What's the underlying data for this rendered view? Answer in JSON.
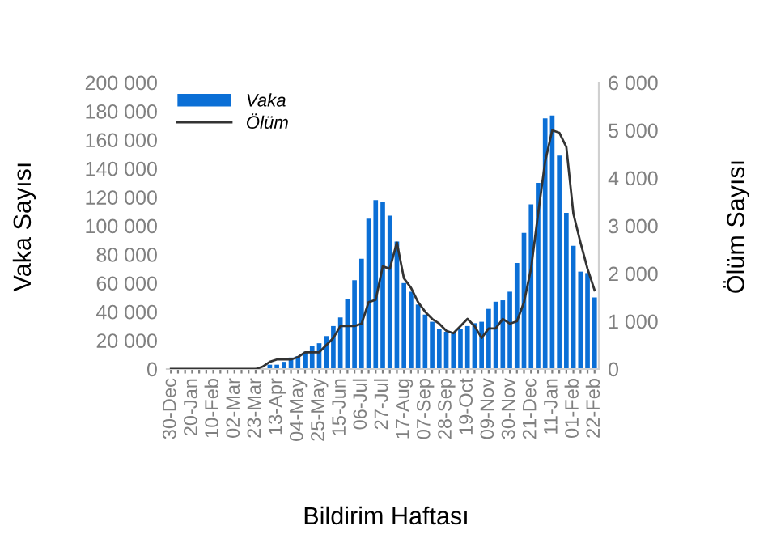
{
  "chart_data": {
    "type": "bar",
    "xlabel": "Bildirim Haftası",
    "ylabel": "Vaka Sayısı",
    "y2label": "Ölüm Sayısı",
    "categories": [
      "30-Dec",
      null,
      null,
      "20-Jan",
      null,
      null,
      "10-Feb",
      null,
      null,
      "02-Mar",
      null,
      null,
      "23-Mar",
      null,
      null,
      "13-Apr",
      null,
      null,
      "04-May",
      null,
      null,
      "25-May",
      null,
      null,
      "15-Jun",
      null,
      null,
      "06-Jul",
      null,
      null,
      "27-Jul",
      null,
      null,
      "17-Aug",
      null,
      null,
      "07-Sep",
      null,
      null,
      "28-Sep",
      null,
      null,
      "19-Oct",
      null,
      null,
      "09-Nov",
      null,
      null,
      "30-Nov",
      null,
      null,
      "21-Dec",
      null,
      null,
      "11-Jan",
      null,
      null,
      "01-Feb",
      null,
      null,
      "22-Feb"
    ],
    "series": [
      {
        "name": "Vaka",
        "color": "#0b6fd6",
        "values": [
          0,
          0,
          0,
          0,
          0,
          0,
          0,
          0,
          0,
          0,
          0,
          0,
          0,
          0,
          3000,
          3000,
          5000,
          8000,
          9000,
          12000,
          16000,
          18000,
          23000,
          30000,
          36000,
          49000,
          62000,
          77000,
          105000,
          118000,
          117000,
          107000,
          89000,
          60000,
          54000,
          45000,
          38000,
          33000,
          28000,
          26000,
          25000,
          28000,
          30000,
          32000,
          33000,
          42000,
          47000,
          48000,
          54000,
          74000,
          95000,
          115000,
          130000,
          175000,
          177000,
          149000,
          109000,
          86000,
          68000,
          67000,
          50000
        ]
      },
      {
        "name": "Ölüm",
        "type": "line",
        "axis": "y2",
        "color": "#333333",
        "values": [
          0,
          0,
          0,
          0,
          0,
          0,
          0,
          0,
          0,
          0,
          0,
          0,
          0,
          50,
          150,
          200,
          200,
          200,
          250,
          350,
          350,
          350,
          500,
          650,
          900,
          900,
          900,
          950,
          1400,
          1450,
          2150,
          2100,
          2650,
          1900,
          1700,
          1400,
          1200,
          1050,
          950,
          800,
          750,
          900,
          1050,
          900,
          650,
          850,
          850,
          1050,
          950,
          1000,
          1400,
          2100,
          3250,
          4350,
          5000,
          4950,
          4650,
          3250,
          2650,
          2100,
          1650
        ]
      }
    ],
    "ylim": [
      0,
      200000
    ],
    "yticks": [
      {
        "value": 0,
        "label": "0"
      },
      {
        "value": 20000,
        "label": "20 000"
      },
      {
        "value": 40000,
        "label": "40 000"
      },
      {
        "value": 60000,
        "label": "60 000"
      },
      {
        "value": 80000,
        "label": "80 000"
      },
      {
        "value": 100000,
        "label": "100 000"
      },
      {
        "value": 120000,
        "label": "120 000"
      },
      {
        "value": 140000,
        "label": "140 000"
      },
      {
        "value": 160000,
        "label": "160 000"
      },
      {
        "value": 180000,
        "label": "180 000"
      },
      {
        "value": 200000,
        "label": "200 000"
      }
    ],
    "y2lim": [
      0,
      6000
    ],
    "y2ticks": [
      {
        "value": 0,
        "label": "0"
      },
      {
        "value": 1000,
        "label": "1 000"
      },
      {
        "value": 2000,
        "label": "2 000"
      },
      {
        "value": 3000,
        "label": "3 000"
      },
      {
        "value": 4000,
        "label": "4 000"
      },
      {
        "value": 5000,
        "label": "5 000"
      },
      {
        "value": 6000,
        "label": "6 000"
      }
    ],
    "legend": "top left",
    "grid": false
  }
}
